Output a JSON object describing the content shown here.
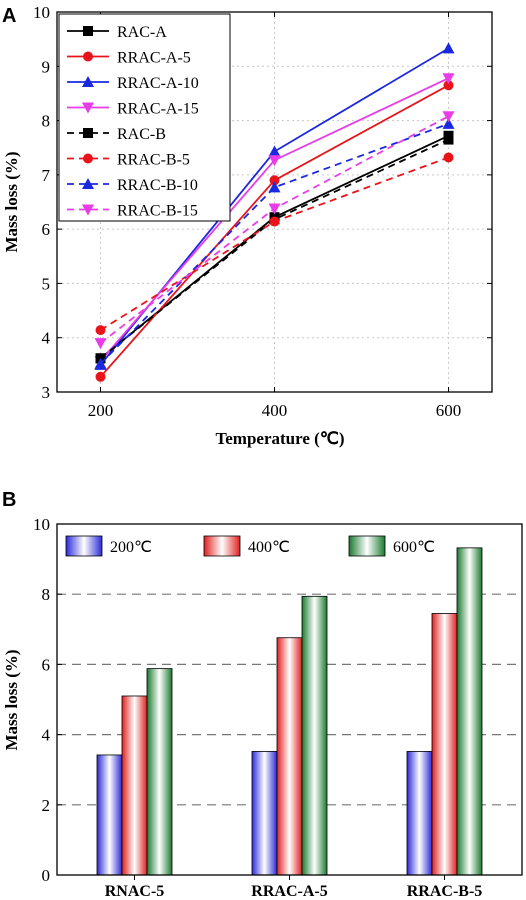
{
  "chart_data": [
    {
      "panel": "A",
      "type": "line",
      "xlabel": "Temperature (℃)",
      "ylabel": "Mass loss (%)",
      "x": [
        200,
        400,
        600
      ],
      "xticks": [
        "200",
        "400",
        "600"
      ],
      "xlim": [
        150,
        650
      ],
      "ylim": [
        3,
        10
      ],
      "yticks": [
        "3",
        "4",
        "5",
        "6",
        "7",
        "8",
        "9",
        "10"
      ],
      "grid": true,
      "legend_position": "top-left",
      "series": [
        {
          "name": "RAC-A",
          "color": "#000000",
          "dash": false,
          "marker": "square",
          "values": [
            3.62,
            6.22,
            7.72
          ]
        },
        {
          "name": "RRAC-A-5",
          "color": "#e8141a",
          "dash": false,
          "marker": "circle",
          "values": [
            3.28,
            6.9,
            8.65
          ]
        },
        {
          "name": "RRAC-A-10",
          "color": "#1a28e0",
          "dash": false,
          "marker": "triangle-up",
          "values": [
            3.5,
            7.43,
            9.33
          ]
        },
        {
          "name": "RRAC-A-15",
          "color": "#e83ce8",
          "dash": false,
          "marker": "triangle-down",
          "values": [
            3.57,
            7.27,
            8.78
          ]
        },
        {
          "name": "RAC-B",
          "color": "#000000",
          "dash": true,
          "marker": "square",
          "values": [
            3.62,
            6.18,
            7.65
          ]
        },
        {
          "name": "RRAC-B-5",
          "color": "#e8141a",
          "dash": true,
          "marker": "circle",
          "values": [
            4.14,
            6.14,
            7.32
          ]
        },
        {
          "name": "RRAC-B-10",
          "color": "#1a28e0",
          "dash": true,
          "marker": "triangle-up",
          "values": [
            3.52,
            6.77,
            7.94
          ]
        },
        {
          "name": "RRAC-B-15",
          "color": "#e83ce8",
          "dash": true,
          "marker": "triangle-down",
          "values": [
            3.9,
            6.38,
            8.08
          ]
        }
      ]
    },
    {
      "panel": "B",
      "type": "bar",
      "ylabel": "Mass loss (%)",
      "categories": [
        "RNAC-5",
        "RRAC-A-5",
        "RRAC-B-5"
      ],
      "ylim": [
        0,
        10
      ],
      "yticks": [
        "0",
        "2",
        "4",
        "6",
        "8",
        "10"
      ],
      "grid": true,
      "legend_position": "top",
      "series": [
        {
          "name": "200℃",
          "color": "#2a2ad8",
          "values": [
            3.42,
            3.52,
            3.52
          ]
        },
        {
          "name": "400℃",
          "color": "#e02020",
          "values": [
            5.1,
            6.76,
            7.45
          ]
        },
        {
          "name": "600℃",
          "color": "#1a7a30",
          "values": [
            5.88,
            7.94,
            9.32
          ]
        }
      ]
    }
  ]
}
